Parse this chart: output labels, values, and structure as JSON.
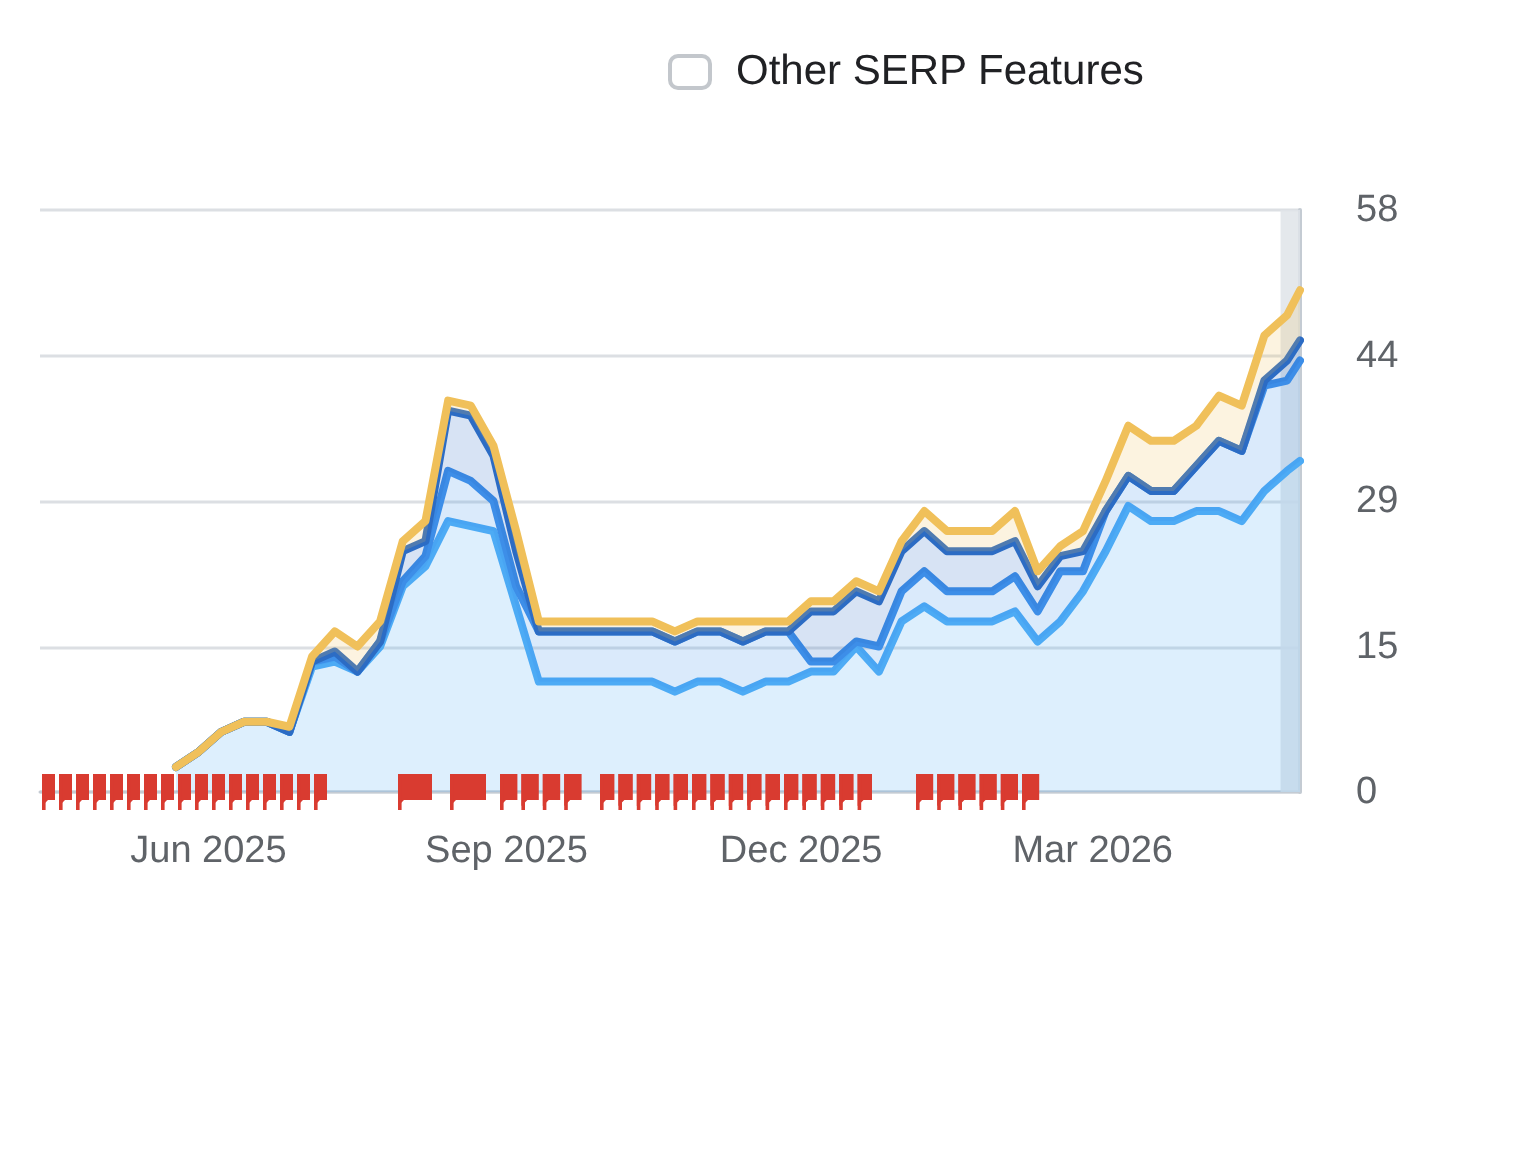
{
  "chart_data": {
    "type": "area",
    "stacked": true,
    "x": [
      "2025-05-22",
      "2025-05-29",
      "2025-06-05",
      "2025-06-12",
      "2025-06-19",
      "2025-06-26",
      "2025-07-03",
      "2025-07-10",
      "2025-07-17",
      "2025-07-24",
      "2025-07-31",
      "2025-08-07",
      "2025-08-14",
      "2025-08-21",
      "2025-08-28",
      "2025-09-04",
      "2025-09-11",
      "2025-09-18",
      "2025-09-25",
      "2025-10-02",
      "2025-10-09",
      "2025-10-16",
      "2025-10-23",
      "2025-10-30",
      "2025-11-06",
      "2025-11-13",
      "2025-11-20",
      "2025-11-27",
      "2025-12-04",
      "2025-12-11",
      "2025-12-18",
      "2025-12-25",
      "2026-01-01",
      "2026-01-08",
      "2026-01-15",
      "2026-01-22",
      "2026-01-29",
      "2026-02-05",
      "2026-02-12",
      "2026-02-19",
      "2026-02-26",
      "2026-03-05",
      "2026-03-12",
      "2026-03-19",
      "2026-03-26",
      "2026-04-02",
      "2026-04-09",
      "2026-04-16",
      "2026-04-23",
      "2026-04-30",
      "2026-05-04"
    ],
    "series": [
      {
        "color": "#4dabf5",
        "values": [
          2.5,
          4,
          6,
          7,
          7,
          6,
          12.5,
          13,
          12,
          14.5,
          20.5,
          22.5,
          27,
          26.5,
          26,
          18.5,
          11,
          11,
          11,
          11,
          11,
          11,
          10,
          11,
          11,
          10,
          11,
          11,
          12,
          12,
          14.5,
          12,
          17,
          18.5,
          17,
          17,
          17,
          18,
          15,
          17,
          20,
          24,
          28.5,
          27,
          27,
          28,
          28,
          27,
          30,
          32,
          33
        ]
      },
      {
        "color": "#3d8ee8",
        "values": [
          0,
          0,
          0,
          0,
          0,
          0,
          0.5,
          0.5,
          0,
          0.5,
          0.5,
          1,
          5,
          4.5,
          3,
          2,
          5,
          5,
          5,
          5,
          5,
          5,
          5,
          5,
          5,
          5,
          5,
          5,
          1,
          1,
          0.5,
          2.5,
          3,
          3.5,
          3,
          3,
          3,
          3.5,
          3,
          5,
          2,
          4,
          3,
          3,
          3,
          4.5,
          7,
          7,
          10.5,
          9,
          10
        ]
      },
      {
        "color": "#2c6cc4",
        "values": [
          0,
          0,
          0,
          0,
          0,
          0,
          0,
          0.5,
          0,
          0,
          3,
          1.5,
          6,
          6.5,
          4.5,
          3.5,
          0,
          0,
          0,
          0,
          0,
          0,
          0,
          0,
          0,
          0,
          0,
          0,
          5,
          5,
          5,
          4.5,
          4,
          4,
          4,
          4,
          4,
          3.5,
          2.5,
          1.5,
          2,
          0,
          0,
          0,
          0,
          0,
          0,
          0,
          0.5,
          2,
          2
        ]
      },
      {
        "color": "#f0c05a",
        "values": [
          0,
          0,
          0,
          0,
          0,
          0.5,
          0.5,
          2,
          2.5,
          2,
          1,
          2,
          1,
          1,
          1,
          2,
          1,
          1,
          1,
          1,
          1,
          1,
          1,
          1,
          1,
          2,
          1,
          1,
          1,
          1,
          1,
          1,
          1,
          2,
          2,
          2,
          2,
          3,
          1.5,
          1,
          2,
          3,
          5,
          5,
          5,
          4,
          4.5,
          4.5,
          4.5,
          4.5,
          5
        ]
      }
    ],
    "xlim": [
      "2025-04-10",
      "2026-05-04"
    ],
    "xticks": [
      {
        "value": "2025-06-01",
        "label": "Jun 2025"
      },
      {
        "value": "2025-09-01",
        "label": "Sep 2025"
      },
      {
        "value": "2025-12-01",
        "label": "Dec 2025"
      },
      {
        "value": "2026-03-01",
        "label": "Mar 2026"
      }
    ],
    "ylim": [
      0,
      58
    ],
    "yticks": [
      0,
      {
        "value": 14.5,
        "label": "15"
      },
      29,
      {
        "value": 43.5,
        "label": "44"
      },
      58
    ],
    "grid": "y",
    "marker": "none",
    "line_style": "solid",
    "bands": [
      {
        "axis": "x",
        "from": "2026-04-28",
        "to": "2026-05-04",
        "color": "#dfe4e9"
      }
    ],
    "annotations": [
      "Other SERP Features"
    ]
  }
}
